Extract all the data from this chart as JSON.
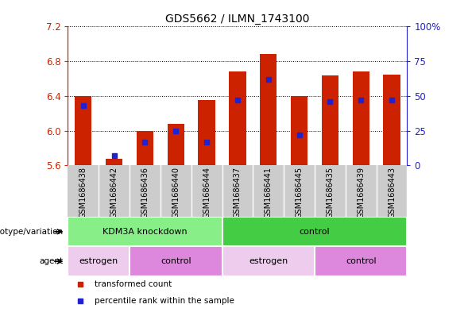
{
  "title": "GDS5662 / ILMN_1743100",
  "samples": [
    "GSM1686438",
    "GSM1686442",
    "GSM1686436",
    "GSM1686440",
    "GSM1686444",
    "GSM1686437",
    "GSM1686441",
    "GSM1686445",
    "GSM1686435",
    "GSM1686439",
    "GSM1686443"
  ],
  "transformed_counts": [
    6.4,
    5.68,
    6.0,
    6.08,
    6.35,
    6.68,
    6.88,
    6.4,
    6.64,
    6.68,
    6.65
  ],
  "percentile_ranks": [
    43,
    7,
    17,
    25,
    17,
    47,
    62,
    22,
    46,
    47,
    47
  ],
  "y_min": 5.6,
  "y_max": 7.2,
  "y_ticks_left": [
    5.6,
    6.0,
    6.4,
    6.8,
    7.2
  ],
  "y_ticks_right": [
    0,
    25,
    50,
    75,
    100
  ],
  "bar_color": "#CC2200",
  "percentile_color": "#2222CC",
  "left_axis_color": "#CC2200",
  "right_axis_color": "#2222CC",
  "genotype_groups": [
    {
      "label": "KDM3A knockdown",
      "start": 0,
      "end": 5,
      "color": "#88EE88"
    },
    {
      "label": "control",
      "start": 5,
      "end": 11,
      "color": "#44CC44"
    }
  ],
  "agent_groups": [
    {
      "label": "estrogen",
      "start": 0,
      "end": 2,
      "color": "#EECCEE"
    },
    {
      "label": "control",
      "start": 2,
      "end": 5,
      "color": "#DD88DD"
    },
    {
      "label": "estrogen",
      "start": 5,
      "end": 8,
      "color": "#EECCEE"
    },
    {
      "label": "control",
      "start": 8,
      "end": 11,
      "color": "#DD88DD"
    }
  ],
  "legend_items": [
    {
      "label": "transformed count",
      "color": "#CC2200",
      "marker": "s"
    },
    {
      "label": "percentile rank within the sample",
      "color": "#2222CC",
      "marker": "s"
    }
  ],
  "tick_label_bg": "#CCCCCC"
}
